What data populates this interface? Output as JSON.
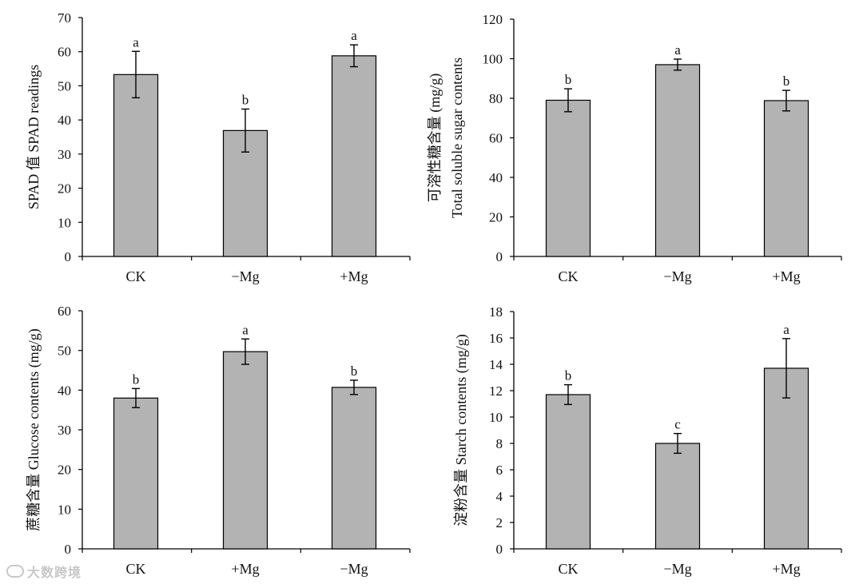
{
  "watermark": "大数跨境",
  "chart_data": [
    {
      "type": "bar",
      "ylabel_lines": [
        "SPAD 值 SPAD readings"
      ],
      "categories": [
        "CK",
        "−Mg",
        "+Mg"
      ],
      "values": [
        53.3,
        36.9,
        58.8
      ],
      "errors": [
        6.8,
        6.3,
        3.2
      ],
      "significance": [
        "a",
        "b",
        "a"
      ],
      "ylim": [
        0,
        70
      ],
      "yticks": [
        0,
        10,
        20,
        30,
        40,
        50,
        60,
        70
      ],
      "bar_color": "#b3b3b3"
    },
    {
      "type": "bar",
      "ylabel_lines": [
        "可溶性糖含量 (mg/g)",
        "Total soluble sugar contents"
      ],
      "categories": [
        "CK",
        "−Mg",
        "+Mg"
      ],
      "values": [
        79,
        97,
        78.8
      ],
      "errors": [
        5.8,
        2.8,
        5.2
      ],
      "significance": [
        "b",
        "a",
        "b"
      ],
      "ylim": [
        0,
        120
      ],
      "yticks": [
        0,
        20,
        40,
        60,
        80,
        100,
        120
      ],
      "bar_color": "#b3b3b3"
    },
    {
      "type": "bar",
      "ylabel_lines": [
        "蔗糖含量 Glucose contents (mg/g)"
      ],
      "categories": [
        "CK",
        "+Mg",
        "−Mg"
      ],
      "values": [
        38,
        49.7,
        40.7
      ],
      "errors": [
        2.4,
        3.2,
        1.8
      ],
      "significance": [
        "b",
        "a",
        "b"
      ],
      "ylim": [
        0,
        60
      ],
      "yticks": [
        0,
        10,
        20,
        30,
        40,
        50,
        60
      ],
      "bar_color": "#b3b3b3"
    },
    {
      "type": "bar",
      "ylabel_lines": [
        "淀粉含量 Starch contents (mg/g)"
      ],
      "categories": [
        "CK",
        "−Mg",
        "+Mg"
      ],
      "values": [
        11.7,
        8.0,
        13.7
      ],
      "errors": [
        0.75,
        0.75,
        2.25
      ],
      "significance": [
        "b",
        "c",
        "a"
      ],
      "ylim": [
        0,
        18
      ],
      "yticks": [
        0,
        2,
        4,
        6,
        8,
        10,
        12,
        14,
        16,
        18
      ],
      "bar_color": "#b3b3b3"
    }
  ]
}
